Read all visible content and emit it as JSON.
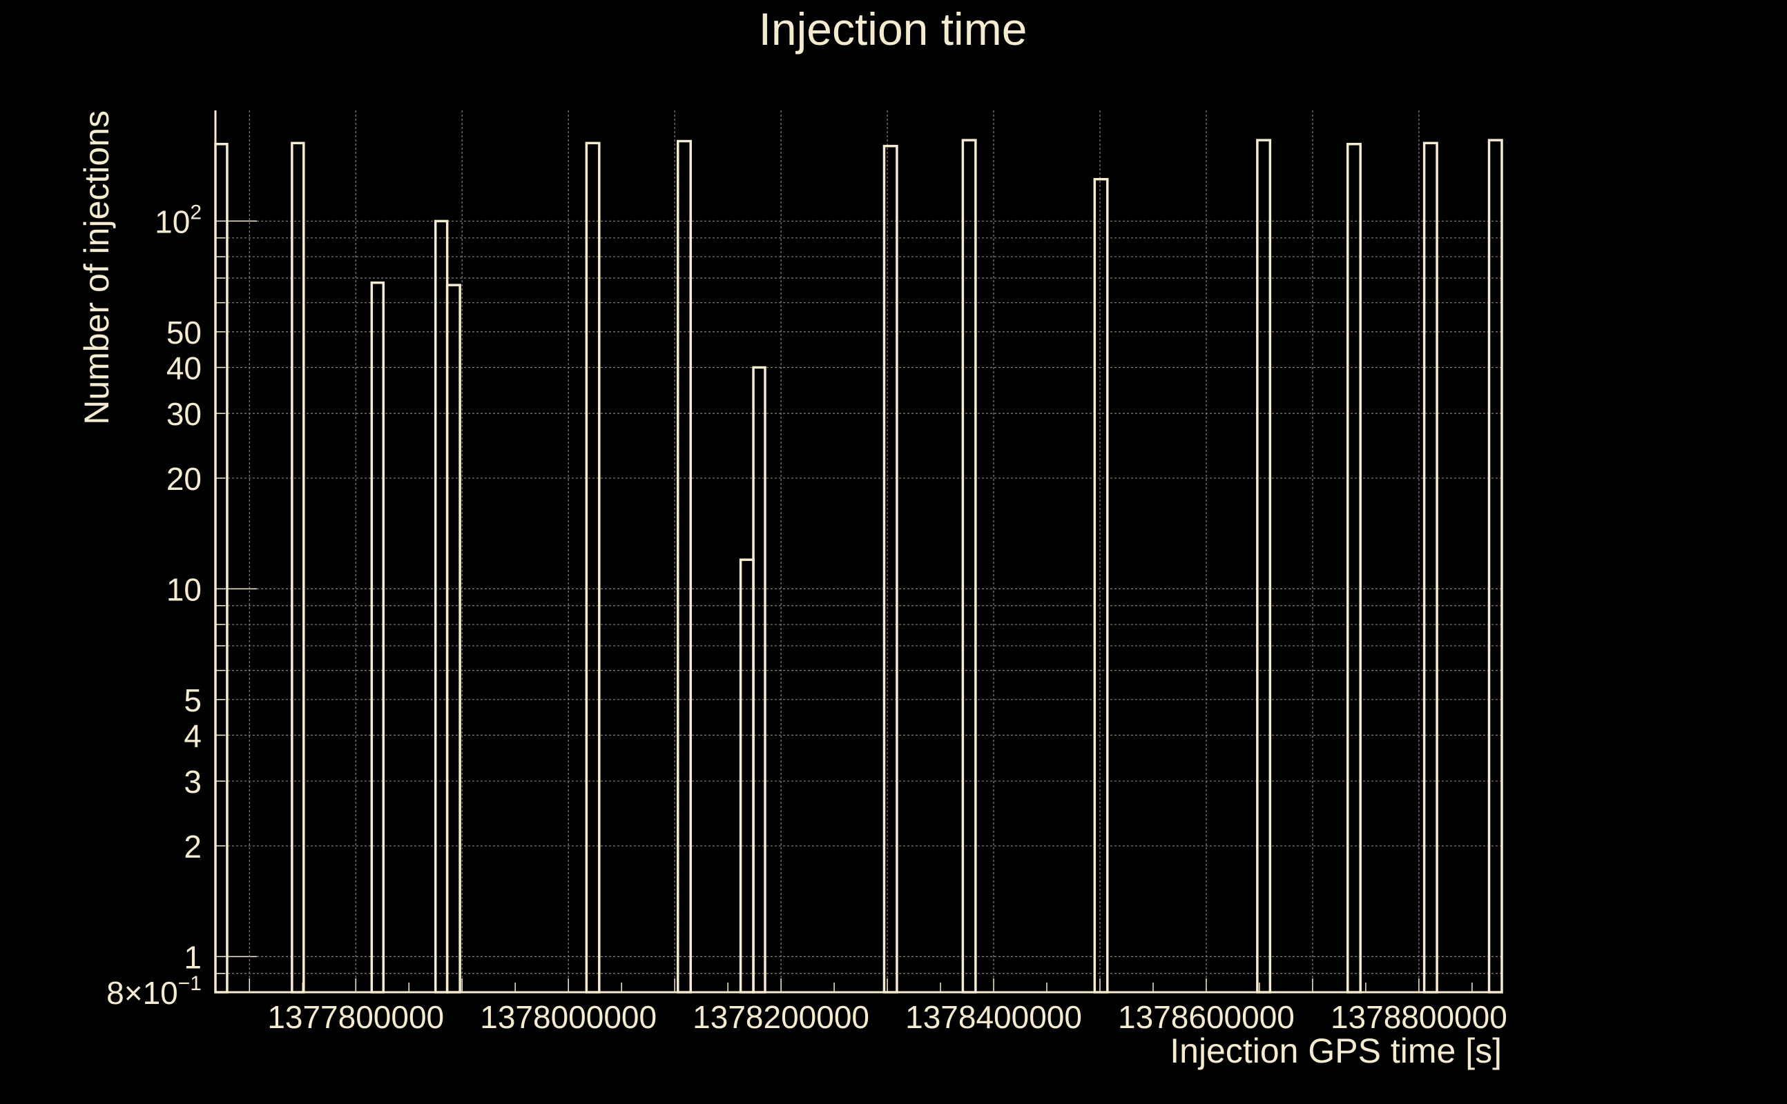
{
  "colors": {
    "background": "#000000",
    "foreground": "#f5ebd0",
    "grid": "#8a857a"
  },
  "chart_data": {
    "type": "bar",
    "title": "Injection time",
    "xlabel": "Injection GPS time [s]",
    "ylabel": "Number of injections",
    "y_scale": "log",
    "xlim": [
      1377668000,
      1378878000
    ],
    "ylim": [
      0.8,
      200
    ],
    "grid": true,
    "x_ticks": [
      {
        "value": 1377800000,
        "label": "1377800000"
      },
      {
        "value": 1378000000,
        "label": "1378000000"
      },
      {
        "value": 1378200000,
        "label": "1378200000"
      },
      {
        "value": 1378400000,
        "label": "1378400000"
      },
      {
        "value": 1378600000,
        "label": "1378600000"
      },
      {
        "value": 1378800000,
        "label": "1378800000"
      }
    ],
    "y_ticks": [
      {
        "value": 0.8,
        "label": "8×10",
        "sup": "−1"
      },
      {
        "value": 1,
        "label": "1"
      },
      {
        "value": 2,
        "label": "2"
      },
      {
        "value": 3,
        "label": "3"
      },
      {
        "value": 4,
        "label": "4"
      },
      {
        "value": 5,
        "label": "5"
      },
      {
        "value": 10,
        "label": "10"
      },
      {
        "value": 20,
        "label": "20"
      },
      {
        "value": 30,
        "label": "30"
      },
      {
        "value": 40,
        "label": "40"
      },
      {
        "value": 50,
        "label": "50"
      },
      {
        "value": 100,
        "label": "10",
        "sup": "2"
      }
    ],
    "bins": [
      {
        "x0": 1377668000,
        "x1": 1377679000,
        "y": 162
      },
      {
        "x0": 1377740000,
        "x1": 1377751000,
        "y": 163
      },
      {
        "x0": 1377815000,
        "x1": 1377826000,
        "y": 68
      },
      {
        "x0": 1377875000,
        "x1": 1377886000,
        "y": 100
      },
      {
        "x0": 1377886000,
        "x1": 1377898000,
        "y": 67
      },
      {
        "x0": 1378017000,
        "x1": 1378029000,
        "y": 163
      },
      {
        "x0": 1378103000,
        "x1": 1378115000,
        "y": 165
      },
      {
        "x0": 1378162000,
        "x1": 1378174000,
        "y": 12
      },
      {
        "x0": 1378174000,
        "x1": 1378185000,
        "y": 40
      },
      {
        "x0": 1378297000,
        "x1": 1378309000,
        "y": 160
      },
      {
        "x0": 1378371000,
        "x1": 1378383000,
        "y": 166
      },
      {
        "x0": 1378495000,
        "x1": 1378507000,
        "y": 130
      },
      {
        "x0": 1378648000,
        "x1": 1378660000,
        "y": 166
      },
      {
        "x0": 1378733000,
        "x1": 1378745000,
        "y": 162
      },
      {
        "x0": 1378805000,
        "x1": 1378817000,
        "y": 163
      },
      {
        "x0": 1378866000,
        "x1": 1378878000,
        "y": 166
      }
    ]
  }
}
